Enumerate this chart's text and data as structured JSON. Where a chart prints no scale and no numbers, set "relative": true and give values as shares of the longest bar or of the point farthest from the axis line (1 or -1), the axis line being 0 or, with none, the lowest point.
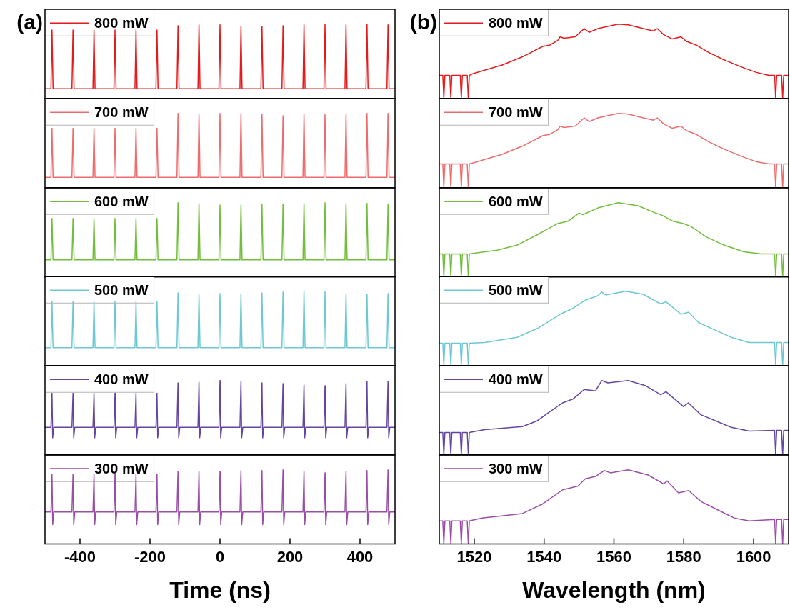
{
  "chart_data": [
    {
      "type": "line",
      "annotations": [
        "(a)"
      ],
      "relative": true,
      "xlim": [
        -500,
        500
      ],
      "tick_labels": false,
      "legend": "top left",
      "marker": "none",
      "line_style": "solid",
      "grid": false,
      "x": [
        -500,
        -483,
        -480,
        -477,
        -423,
        -420,
        -417,
        -363,
        -360,
        -357,
        -303,
        -300,
        -297,
        -243,
        -240,
        -237,
        -183,
        -180,
        -177,
        -123,
        -120,
        -117,
        -63,
        -60,
        -57,
        -3,
        0,
        3,
        57,
        60,
        63,
        117,
        120,
        123,
        177,
        180,
        183,
        237,
        240,
        243,
        297,
        300,
        303,
        357,
        360,
        363,
        417,
        420,
        423,
        477,
        480,
        483,
        500
      ],
      "series": [
        {
          "name": "800 mW",
          "color": "#e41a1c",
          "values": [
            0.13,
            0.13,
            0.92,
            0.13,
            0.13,
            0.92,
            0.13,
            0.13,
            0.92,
            0.13,
            0.13,
            0.92,
            0.13,
            0.13,
            0.92,
            0.13,
            0.13,
            0.92,
            0.13,
            0.13,
            0.98,
            0.13,
            0.13,
            0.99,
            0.13,
            0.13,
            0.99,
            0.13,
            0.13,
            0.97,
            0.13,
            0.13,
            0.97,
            0.13,
            0.13,
            0.98,
            0.13,
            0.13,
            0.99,
            0.13,
            0.13,
            1,
            0.13,
            0.13,
            0.99,
            0.13,
            0.13,
            1,
            0.13,
            0.13,
            0.99,
            0.13,
            0.13
          ]
        }
      ]
    },
    {
      "type": "line",
      "relative": true,
      "xlim": [
        -500,
        500
      ],
      "tick_labels": false,
      "legend": "top left",
      "marker": "none",
      "line_style": "solid",
      "grid": false,
      "x": [
        -500,
        -483,
        -480,
        -477,
        -423,
        -420,
        -417,
        -363,
        -360,
        -357,
        -303,
        -300,
        -297,
        -243,
        -240,
        -237,
        -183,
        -180,
        -177,
        -123,
        -120,
        -117,
        -63,
        -60,
        -57,
        -3,
        0,
        3,
        57,
        60,
        63,
        117,
        120,
        123,
        177,
        180,
        183,
        237,
        240,
        243,
        297,
        300,
        303,
        357,
        360,
        363,
        417,
        420,
        423,
        477,
        480,
        483,
        500
      ],
      "series": [
        {
          "name": "700 mW",
          "color": "#ee6b6e",
          "values": [
            0.14,
            0.14,
            0.8,
            0.14,
            0.14,
            0.8,
            0.14,
            0.14,
            0.8,
            0.14,
            0.14,
            0.8,
            0.14,
            0.14,
            0.8,
            0.14,
            0.14,
            0.8,
            0.14,
            0.14,
            1,
            0.14,
            0.14,
            0.99,
            0.14,
            0.14,
            1,
            0.14,
            0.14,
            1,
            0.14,
            0.14,
            0.99,
            0.14,
            0.14,
            0.97,
            0.14,
            0.14,
            0.99,
            0.14,
            0.14,
            0.99,
            0.14,
            0.14,
            0.99,
            0.14,
            0.14,
            1,
            0.14,
            0.14,
            1,
            0.14,
            0.14
          ]
        }
      ]
    },
    {
      "type": "line",
      "relative": true,
      "xlim": [
        -500,
        500
      ],
      "tick_labels": false,
      "legend": "top left",
      "marker": "none",
      "line_style": "solid",
      "grid": false,
      "x": [
        -500,
        -483,
        -480,
        -477,
        -423,
        -420,
        -417,
        -363,
        -360,
        -357,
        -303,
        -300,
        -297,
        -243,
        -240,
        -237,
        -183,
        -180,
        -177,
        -123,
        -120,
        -117,
        -63,
        -60,
        -57,
        -3,
        0,
        3,
        57,
        60,
        63,
        117,
        120,
        123,
        177,
        180,
        183,
        237,
        240,
        243,
        297,
        300,
        303,
        357,
        360,
        363,
        417,
        420,
        423,
        477,
        480,
        483,
        500
      ],
      "series": [
        {
          "name": "600 mW",
          "color": "#73bd3c",
          "values": [
            0.23,
            0.23,
            0.79,
            0.23,
            0.23,
            0.79,
            0.23,
            0.23,
            0.79,
            0.23,
            0.23,
            0.79,
            0.23,
            0.23,
            0.79,
            0.23,
            0.23,
            0.79,
            0.23,
            0.23,
            1,
            0.23,
            0.23,
            0.99,
            0.23,
            0.23,
            0.97,
            0.23,
            0.23,
            0.97,
            0.23,
            0.23,
            0.98,
            0.23,
            0.23,
            0.98,
            0.23,
            0.23,
            0.99,
            0.23,
            0.23,
            1,
            0.23,
            0.23,
            0.99,
            0.23,
            0.23,
            0.99,
            0.23,
            0.23,
            0.98,
            0.23,
            0.23
          ]
        }
      ]
    },
    {
      "type": "line",
      "relative": true,
      "xlim": [
        -500,
        500
      ],
      "tick_labels": false,
      "legend": "top left",
      "marker": "none",
      "line_style": "solid",
      "grid": false,
      "x": [
        -500,
        -483,
        -480,
        -477,
        -423,
        -420,
        -417,
        -363,
        -360,
        -357,
        -303,
        -300,
        -297,
        -243,
        -240,
        -237,
        -183,
        -180,
        -177,
        -123,
        -120,
        -117,
        -63,
        -60,
        -57,
        -3,
        0,
        3,
        57,
        60,
        63,
        117,
        120,
        123,
        177,
        180,
        183,
        237,
        240,
        243,
        297,
        300,
        303,
        357,
        360,
        363,
        417,
        420,
        423,
        477,
        480,
        483,
        500
      ],
      "series": [
        {
          "name": "500 mW",
          "color": "#6dc8d3",
          "values": [
            0.24,
            0.24,
            0.86,
            0.24,
            0.24,
            0.86,
            0.24,
            0.24,
            0.86,
            0.24,
            0.24,
            0.86,
            0.24,
            0.24,
            0.86,
            0.24,
            0.24,
            0.86,
            0.24,
            0.24,
            0.98,
            0.24,
            0.24,
            0.96,
            0.24,
            0.24,
            0.97,
            0.24,
            0.24,
            0.97,
            0.24,
            0.24,
            0.98,
            0.24,
            0.24,
            0.99,
            0.24,
            0.24,
            1,
            0.24,
            0.24,
            1,
            0.24,
            0.24,
            0.97,
            0.24,
            0.24,
            0.96,
            0.24,
            0.24,
            0.97,
            0.24,
            0.24
          ]
        }
      ]
    },
    {
      "type": "line",
      "relative": true,
      "xlim": [
        -500,
        500
      ],
      "tick_labels": false,
      "legend": "top left",
      "marker": "none",
      "line_style": "solid",
      "grid": false,
      "x": [
        -500,
        -483,
        -480,
        -478,
        -475,
        -423,
        -420,
        -418,
        -415,
        -363,
        -360,
        -358,
        -355,
        -303,
        -300,
        -298,
        -295,
        -243,
        -240,
        -238,
        -235,
        -183,
        -180,
        -178,
        -175,
        -123,
        -120,
        -118,
        -115,
        -63,
        -60,
        -58,
        -55,
        -3,
        0,
        2,
        5,
        57,
        60,
        62,
        65,
        117,
        120,
        122,
        125,
        177,
        180,
        182,
        185,
        237,
        240,
        242,
        245,
        297,
        300,
        302,
        305,
        357,
        360,
        362,
        365,
        417,
        420,
        422,
        425,
        477,
        480,
        482,
        485,
        500
      ],
      "series": [
        {
          "name": "400 mW",
          "color": "#6446a0",
          "values": [
            0.37,
            0.37,
            0.83,
            0.23,
            0.37,
            0.37,
            0.83,
            0.23,
            0.37,
            0.37,
            0.83,
            0.23,
            0.37,
            0.37,
            0.83,
            0.23,
            0.37,
            0.37,
            0.83,
            0.23,
            0.37,
            0.37,
            0.83,
            0.23,
            0.37,
            0.37,
            0.97,
            0.23,
            0.37,
            0.37,
            0.98,
            0.23,
            0.37,
            0.37,
            1,
            0.23,
            0.37,
            0.37,
            0.99,
            0.23,
            0.37,
            0.37,
            0.97,
            0.23,
            0.37,
            0.37,
            0.96,
            0.23,
            0.37,
            0.37,
            0.94,
            0.23,
            0.37,
            0.37,
            0.93,
            0.23,
            0.37,
            0.37,
            0.96,
            0.23,
            0.37,
            0.37,
            0.99,
            0.23,
            0.37,
            0.37,
            0.99,
            0.23,
            0.37,
            0.37
          ]
        }
      ]
    },
    {
      "type": "line",
      "relative": true,
      "xlim": [
        -500,
        500
      ],
      "xticks": [
        -400,
        -200,
        0,
        200,
        400
      ],
      "tick_labels": "x",
      "xlabel": "Time (ns)",
      "legend": "top left",
      "marker": "none",
      "line_style": "solid",
      "grid": false,
      "x": [
        -500,
        -483,
        -480,
        -478,
        -475,
        -423,
        -420,
        -418,
        -415,
        -363,
        -360,
        -358,
        -355,
        -303,
        -300,
        -298,
        -295,
        -243,
        -240,
        -238,
        -235,
        -183,
        -180,
        -178,
        -175,
        -123,
        -120,
        -118,
        -115,
        -63,
        -60,
        -58,
        -55,
        -3,
        0,
        2,
        5,
        57,
        60,
        62,
        65,
        117,
        120,
        122,
        125,
        177,
        180,
        182,
        185,
        237,
        240,
        242,
        245,
        297,
        300,
        302,
        305,
        357,
        360,
        362,
        365,
        417,
        420,
        422,
        425,
        477,
        480,
        482,
        485,
        500
      ],
      "series": [
        {
          "name": "300 mW",
          "color": "#9a4fa6",
          "values": [
            0.43,
            0.43,
            0.94,
            0.26,
            0.43,
            0.43,
            0.94,
            0.26,
            0.43,
            0.43,
            0.94,
            0.26,
            0.43,
            0.43,
            0.94,
            0.26,
            0.43,
            0.43,
            0.94,
            0.26,
            0.43,
            0.43,
            0.94,
            0.26,
            0.43,
            0.43,
            0.98,
            0.26,
            0.43,
            0.43,
            0.98,
            0.26,
            0.43,
            0.43,
            0.98,
            0.26,
            0.43,
            0.43,
            0.99,
            0.26,
            0.43,
            0.43,
            0.99,
            0.26,
            0.43,
            0.43,
            1,
            0.26,
            0.43,
            0.43,
            0.98,
            0.26,
            0.43,
            0.43,
            0.96,
            0.26,
            0.43,
            0.43,
            0.98,
            0.26,
            0.43,
            0.43,
            0.99,
            0.26,
            0.43,
            0.43,
            1,
            0.26,
            0.43,
            0.43
          ]
        }
      ]
    },
    {
      "type": "line",
      "annotations": [
        "(b)"
      ],
      "relative": true,
      "xlim": [
        1510,
        1610
      ],
      "tick_labels": false,
      "legend": "top left",
      "marker": "none",
      "line_style": "solid",
      "grid": false,
      "x": [
        1510,
        1511,
        1511.3,
        1511.6,
        1513,
        1513.3,
        1513.6,
        1516,
        1516.3,
        1516.6,
        1518,
        1518.3,
        1518.6,
        1519.4,
        1523,
        1528,
        1533.8,
        1539.6,
        1541.7,
        1543.9,
        1544.6,
        1545.7,
        1548.9,
        1551.5,
        1552.9,
        1555.4,
        1561.2,
        1564.1,
        1568.4,
        1571.3,
        1572.4,
        1574.2,
        1576.7,
        1579.2,
        1580.7,
        1583.5,
        1587.1,
        1591.5,
        1597.2,
        1600.8,
        1604.4,
        1606,
        1606.3,
        1606.6,
        1608,
        1608.3,
        1608.6,
        1610
      ],
      "series": [
        {
          "name": "800 mW",
          "color": "#e41a1c",
          "values": [
            0.31,
            0.31,
            0,
            0.31,
            0.31,
            0,
            0.31,
            0.31,
            0,
            0.31,
            0.31,
            0,
            0.31,
            0.33,
            0.38,
            0.45,
            0.56,
            0.7,
            0.72,
            0.78,
            0.83,
            0.81,
            0.83,
            0.94,
            0.89,
            0.94,
            1,
            0.99,
            0.94,
            0.91,
            0.94,
            0.86,
            0.8,
            0.83,
            0.77,
            0.72,
            0.62,
            0.52,
            0.41,
            0.35,
            0.31,
            0.31,
            0,
            0.31,
            0.31,
            0,
            0.31,
            0.31
          ]
        }
      ]
    },
    {
      "type": "line",
      "relative": true,
      "xlim": [
        1510,
        1610
      ],
      "tick_labels": false,
      "legend": "top left",
      "marker": "none",
      "line_style": "solid",
      "grid": false,
      "x": [
        1510,
        1511,
        1511.3,
        1511.6,
        1513,
        1513.3,
        1513.6,
        1516,
        1516.3,
        1516.6,
        1518,
        1518.3,
        1518.6,
        1519.4,
        1523,
        1528,
        1533.8,
        1539.6,
        1541.7,
        1543.9,
        1544.6,
        1545.7,
        1548.9,
        1551.5,
        1552.9,
        1555.4,
        1561.2,
        1564.1,
        1568.4,
        1571.3,
        1572.4,
        1574.2,
        1576.7,
        1579.2,
        1580.7,
        1583.5,
        1587.1,
        1591.5,
        1597.2,
        1600.8,
        1604.4,
        1606,
        1606.3,
        1606.6,
        1608,
        1608.3,
        1608.6,
        1610
      ],
      "series": [
        {
          "name": "700 mW",
          "color": "#ee6b6e",
          "values": [
            0.32,
            0.32,
            0,
            0.32,
            0.32,
            0,
            0.32,
            0.32,
            0,
            0.32,
            0.32,
            0,
            0.32,
            0.33,
            0.38,
            0.45,
            0.56,
            0.7,
            0.72,
            0.78,
            0.83,
            0.81,
            0.83,
            0.94,
            0.89,
            0.94,
            1,
            0.99,
            0.94,
            0.91,
            0.94,
            0.86,
            0.8,
            0.83,
            0.77,
            0.72,
            0.62,
            0.52,
            0.41,
            0.35,
            0.32,
            0.32,
            0,
            0.32,
            0.32,
            0,
            0.32,
            0.32
          ]
        }
      ]
    },
    {
      "type": "line",
      "relative": true,
      "xlim": [
        1510,
        1610
      ],
      "tick_labels": false,
      "legend": "top left",
      "marker": "none",
      "line_style": "solid",
      "grid": false,
      "x": [
        1510,
        1511,
        1511.3,
        1511.6,
        1513,
        1513.3,
        1513.6,
        1516,
        1516.3,
        1516.6,
        1518,
        1518.3,
        1518.6,
        1521.5,
        1526.6,
        1532.3,
        1538.1,
        1543.9,
        1546.8,
        1550,
        1551.1,
        1555.4,
        1561.2,
        1566.9,
        1572,
        1573.4,
        1577,
        1579.9,
        1582.1,
        1586.4,
        1591.5,
        1597.2,
        1602.3,
        1606,
        1606.3,
        1606.6,
        1608,
        1608.3,
        1608.6,
        1610
      ],
      "series": [
        {
          "name": "600 mW",
          "color": "#73bd3c",
          "values": [
            0.31,
            0.31,
            0,
            0.31,
            0.31,
            0,
            0.31,
            0.31,
            0,
            0.31,
            0.31,
            0,
            0.31,
            0.33,
            0.36,
            0.43,
            0.57,
            0.72,
            0.75,
            0.86,
            0.84,
            0.93,
            1,
            0.96,
            0.86,
            0.84,
            0.75,
            0.72,
            0.68,
            0.54,
            0.43,
            0.34,
            0.31,
            0.31,
            0,
            0.31,
            0.31,
            0,
            0.31,
            0.31
          ]
        }
      ]
    },
    {
      "type": "line",
      "relative": true,
      "xlim": [
        1510,
        1610
      ],
      "tick_labels": false,
      "legend": "top left",
      "marker": "none",
      "line_style": "solid",
      "grid": false,
      "x": [
        1510,
        1511,
        1511.3,
        1511.6,
        1513,
        1513.3,
        1513.6,
        1516,
        1516.3,
        1516.6,
        1518,
        1518.3,
        1518.6,
        1523,
        1532.3,
        1538.1,
        1544.6,
        1548.2,
        1551.8,
        1555.4,
        1556.5,
        1557.6,
        1563.4,
        1568.4,
        1573.4,
        1574.9,
        1579.2,
        1581.4,
        1584.2,
        1589.3,
        1593.6,
        1598.7,
        1606,
        1606.3,
        1606.6,
        1608,
        1608.3,
        1608.6,
        1610
      ],
      "series": [
        {
          "name": "500 mW",
          "color": "#6dc8d3",
          "values": [
            0.3,
            0.3,
            0,
            0.3,
            0.3,
            0,
            0.3,
            0.3,
            0,
            0.3,
            0.3,
            0,
            0.3,
            0.31,
            0.38,
            0.5,
            0.69,
            0.77,
            0.88,
            0.94,
            0.99,
            0.95,
            1,
            0.96,
            0.83,
            0.86,
            0.69,
            0.72,
            0.58,
            0.47,
            0.38,
            0.31,
            0.31,
            0,
            0.31,
            0.31,
            0,
            0.31,
            0.31
          ]
        }
      ]
    },
    {
      "type": "line",
      "relative": true,
      "xlim": [
        1510,
        1610
      ],
      "tick_labels": false,
      "legend": "top left",
      "marker": "none",
      "line_style": "solid",
      "grid": false,
      "x": [
        1510,
        1511,
        1511.3,
        1511.6,
        1513,
        1513.3,
        1513.6,
        1516,
        1516.3,
        1516.6,
        1518,
        1518.3,
        1518.6,
        1523,
        1533.8,
        1538.1,
        1541,
        1545.3,
        1548.2,
        1551.5,
        1554.7,
        1556.5,
        1558.3,
        1564.1,
        1569.1,
        1573.4,
        1574.9,
        1579.9,
        1581.3,
        1584.9,
        1590,
        1593.6,
        1598.7,
        1606,
        1606.3,
        1606.6,
        1608,
        1608.3,
        1608.6,
        1610
      ],
      "series": [
        {
          "name": "400 mW",
          "color": "#6446a0",
          "values": [
            0.3,
            0.3,
            0,
            0.3,
            0.3,
            0,
            0.3,
            0.3,
            0,
            0.3,
            0.3,
            0,
            0.3,
            0.34,
            0.38,
            0.46,
            0.56,
            0.7,
            0.75,
            0.88,
            0.86,
            1,
            0.97,
            1,
            0.93,
            0.81,
            0.85,
            0.65,
            0.7,
            0.54,
            0.44,
            0.37,
            0.32,
            0.33,
            0,
            0.33,
            0.33,
            0,
            0.33,
            0.33
          ]
        }
      ]
    },
    {
      "type": "line",
      "relative": true,
      "xlim": [
        1510,
        1610
      ],
      "xticks": [
        1520,
        1540,
        1560,
        1580,
        1600
      ],
      "tick_labels": "x",
      "xlabel": "Wavelength (nm)",
      "legend": "top left",
      "marker": "none",
      "line_style": "solid",
      "grid": false,
      "x": [
        1510,
        1511,
        1511.3,
        1511.6,
        1513,
        1513.3,
        1513.6,
        1516,
        1516.3,
        1516.6,
        1518,
        1518.3,
        1518.6,
        1522.3,
        1533.8,
        1539.6,
        1545.3,
        1549.7,
        1551.8,
        1554.7,
        1557.2,
        1559,
        1564.1,
        1569.8,
        1574.2,
        1575.2,
        1578.5,
        1581.4,
        1585,
        1589.3,
        1594.4,
        1598.7,
        1606,
        1606.3,
        1606.6,
        1608,
        1608.3,
        1608.6,
        1610
      ],
      "series": [
        {
          "name": "300 mW",
          "color": "#9a4fa6",
          "values": [
            0.31,
            0.31,
            0,
            0.31,
            0.31,
            0,
            0.31,
            0.31,
            0,
            0.31,
            0.31,
            0,
            0.31,
            0.35,
            0.41,
            0.54,
            0.73,
            0.78,
            0.88,
            0.91,
            0.99,
            0.96,
            1,
            0.93,
            0.81,
            0.85,
            0.69,
            0.72,
            0.57,
            0.47,
            0.35,
            0.31,
            0.33,
            0,
            0.33,
            0.33,
            0,
            0.33,
            0.33
          ]
        }
      ]
    }
  ]
}
